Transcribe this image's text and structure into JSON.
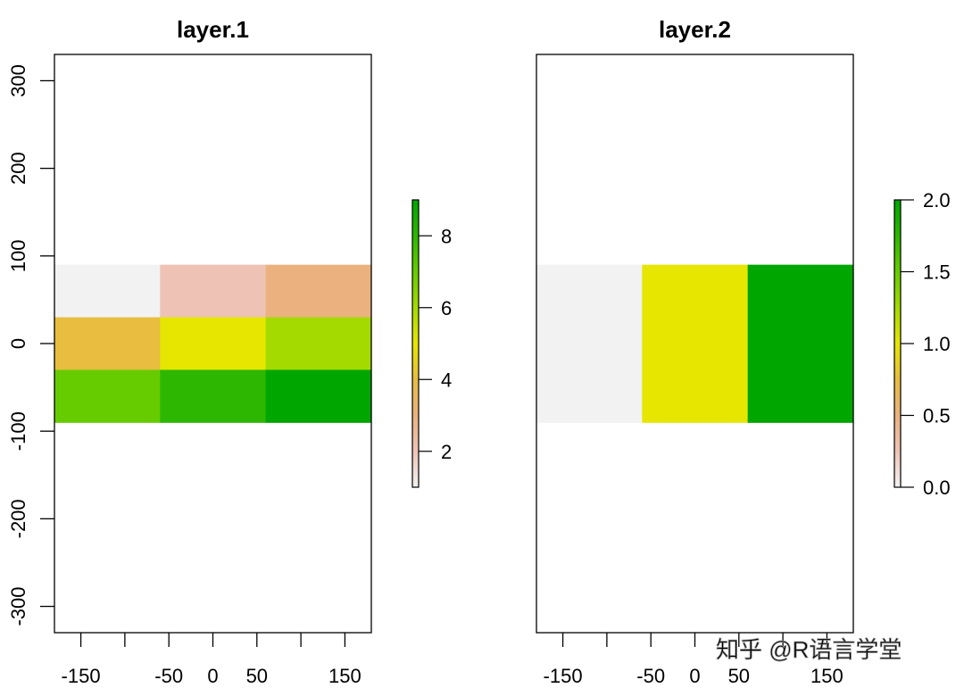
{
  "chart_data": [
    {
      "type": "heatmap",
      "title": "layer.1",
      "xlim": [
        -180,
        180
      ],
      "ylim": [
        -330,
        330
      ],
      "extent": {
        "xmin": -180,
        "xmax": 180,
        "ymin": -90,
        "ymax": 90
      },
      "xticks": [
        -150,
        -100,
        -50,
        0,
        50,
        100,
        150
      ],
      "xtick_labels": [
        "-150",
        "",
        "-50",
        "0",
        "50",
        "",
        "150"
      ],
      "yticks": [
        -300,
        -200,
        -100,
        0,
        100,
        200,
        300
      ],
      "ytick_labels": [
        "-300",
        "-200",
        "-100",
        "0",
        "100",
        "200",
        "300"
      ],
      "grid": false,
      "values": [
        [
          1,
          2,
          3
        ],
        [
          4,
          5,
          6
        ],
        [
          7,
          8,
          9
        ]
      ],
      "cell_colors": [
        [
          "#F2F2F2",
          "#EEC3B5",
          "#EBB27F"
        ],
        [
          "#E8BD40",
          "#E6E600",
          "#A5DA00"
        ],
        [
          "#66CC00",
          "#2DB700",
          "#00A600"
        ]
      ],
      "legend": {
        "placement": "right",
        "range": [
          1,
          9
        ],
        "ticks": [
          2,
          4,
          6,
          8
        ],
        "tick_labels": [
          "2",
          "4",
          "6",
          "8"
        ]
      }
    },
    {
      "type": "heatmap",
      "title": "layer.2",
      "xlim": [
        -180,
        180
      ],
      "ylim": [
        -330,
        330
      ],
      "extent": {
        "xmin": -180,
        "xmax": 180,
        "ymin": -90,
        "ymax": 90
      },
      "xticks": [
        -150,
        -100,
        -50,
        0,
        50,
        100,
        150
      ],
      "xtick_labels": [
        "-150",
        "",
        "-50",
        "0",
        "50",
        "",
        "150"
      ],
      "yticks": [],
      "ytick_labels": [],
      "grid": false,
      "values": [
        [
          0,
          1,
          2
        ]
      ],
      "cell_colors": [
        [
          "#F2F2F2",
          "#E6E600",
          "#00A600"
        ]
      ],
      "legend": {
        "placement": "right",
        "range": [
          0,
          2
        ],
        "ticks": [
          0,
          0.5,
          1,
          1.5,
          2
        ],
        "tick_labels": [
          "0.0",
          "0.5",
          "1.0",
          "1.5",
          "2.0"
        ]
      }
    }
  ],
  "colorscale": [
    "#F2F2F2",
    "#EEC3B5",
    "#EBB27F",
    "#E8BD40",
    "#E6E600",
    "#A5DA00",
    "#66CC00",
    "#2DB700",
    "#00A600"
  ],
  "watermark": "知乎 @R语言学堂"
}
